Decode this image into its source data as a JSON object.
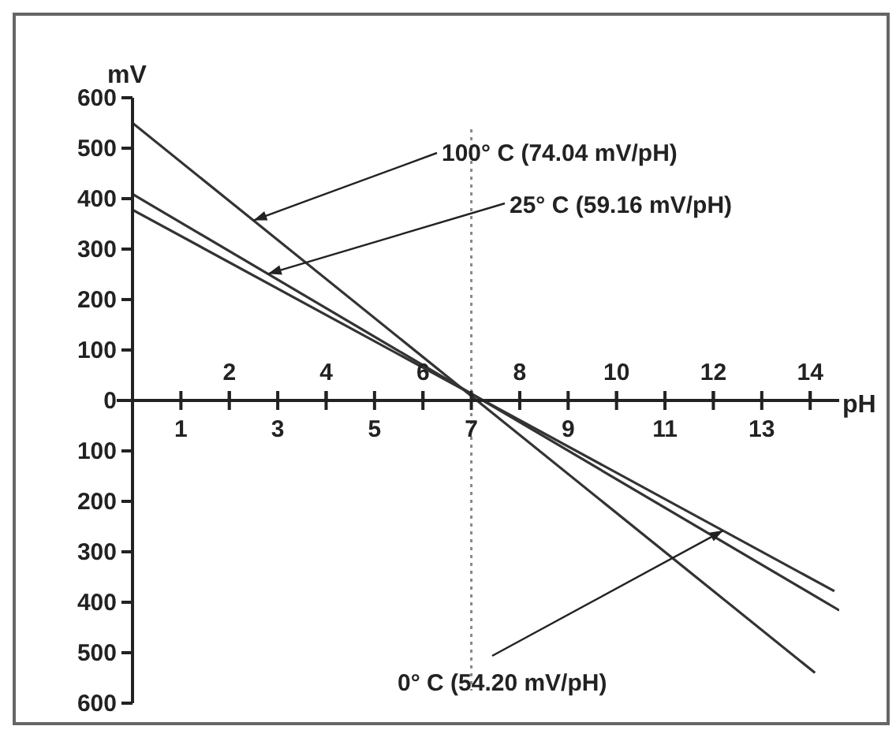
{
  "chart_data": {
    "type": "line",
    "xlabel": "pH",
    "ylabel": "mV",
    "xlim": [
      0,
      14.6
    ],
    "xticks": [
      1,
      {
        "value": 2,
        "label": null
      },
      3,
      {
        "value": 4,
        "label": null
      },
      5,
      {
        "value": 6,
        "label": null
      },
      7,
      {
        "value": 8,
        "label": null
      },
      9,
      {
        "value": 10,
        "label": null
      },
      11,
      {
        "value": 12,
        "label": null
      },
      13,
      {
        "value": 14,
        "label": null
      }
    ],
    "x2lim": [
      0,
      14.6
    ],
    "x2ticks": [
      2,
      4,
      6,
      8,
      10,
      12,
      14
    ],
    "ylim": [
      -600,
      600
    ],
    "yticks": [
      {
        "value": -600,
        "label": "600"
      },
      {
        "value": -500,
        "label": "500"
      },
      {
        "value": -400,
        "label": "400"
      },
      {
        "value": -300,
        "label": "300"
      },
      {
        "value": -200,
        "label": "200"
      },
      {
        "value": -100,
        "label": "100"
      },
      0,
      100,
      200,
      300,
      400,
      500,
      600
    ],
    "series": [
      {
        "color": "#333333",
        "x": [
          0,
          14.1
        ],
        "values": [
          550,
          -540
        ]
      },
      {
        "color": "#333333",
        "x": [
          0,
          14.6
        ],
        "values": [
          409,
          -416
        ]
      },
      {
        "color": "#333333",
        "x": [
          0,
          14.5
        ],
        "values": [
          378,
          -378
        ]
      }
    ],
    "ref_lines": [
      {
        "axis": "x",
        "value": 7,
        "line_style": "dotted",
        "color": "#888888"
      }
    ],
    "annotations": [
      {
        "text": "100° C (74.04 mV/pH)",
        "x": 2.5,
        "y": 357
      },
      {
        "text": "25° C (59.16 mV/pH)",
        "x": 2.8,
        "y": 251
      },
      {
        "text": "0° C (54.20 mV/pH)",
        "x": 12.2,
        "y": -258
      }
    ],
    "grid": false,
    "legend": false,
    "marker": "none",
    "line_style": "solid"
  }
}
